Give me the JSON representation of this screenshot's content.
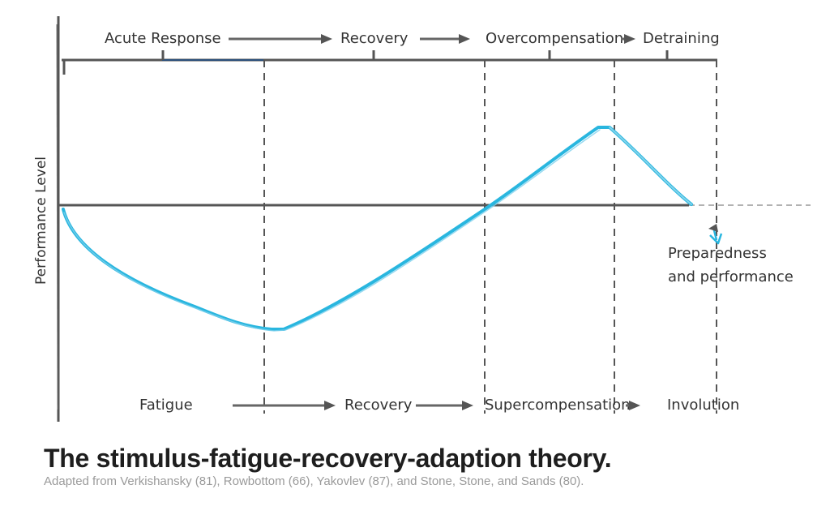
{
  "diagram": {
    "top_phases": {
      "acute_response": "Acute Response",
      "recovery": "Recovery",
      "overcompensation": "Overcompensation",
      "detraining": "Detraining"
    },
    "bottom_phases": {
      "fatigue": "Fatigue",
      "recovery": "Recovery",
      "supercompensation": "Supercompensation",
      "involution": "Involution"
    },
    "y_axis_label": "Performance Level",
    "annotation": {
      "line1": "Preparedness",
      "line2": "and performance"
    },
    "colors": {
      "curve": "#29b6df",
      "ink": "#555555",
      "text": "#333333"
    }
  },
  "caption": {
    "title": "The stimulus-fatigue-recovery-adaption theory.",
    "subtitle": "Adapted from Verkishansky (81), Rowbottom (66), Yakovlev (87), and Stone, Stone, and Sands (80)."
  }
}
